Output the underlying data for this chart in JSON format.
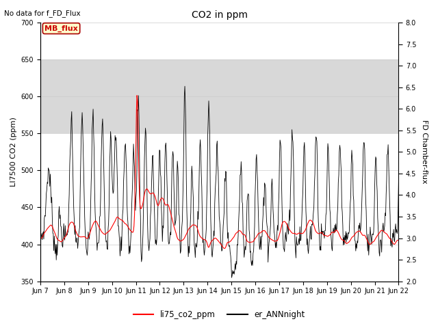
{
  "title": "CO2 in ppm",
  "ylabel_left": "LI7500 CO2 (ppm)",
  "ylabel_right": "FD Chamber-flux",
  "ylim_left": [
    350,
    700
  ],
  "ylim_right": [
    2.0,
    8.0
  ],
  "yticks_left": [
    350,
    400,
    450,
    500,
    550,
    600,
    650,
    700
  ],
  "yticks_right": [
    2.0,
    2.5,
    3.0,
    3.5,
    4.0,
    4.5,
    5.0,
    5.5,
    6.0,
    6.5,
    7.0,
    7.5,
    8.0
  ],
  "no_data_text": "No data for f_FD_Flux",
  "mb_flux_label": "MB_flux",
  "legend_labels": [
    "li75_co2_ppm",
    "er_ANNnight"
  ],
  "shaded_band": [
    550,
    650
  ],
  "shaded_color": "#d8d8d8",
  "line_red_color": "#ff0000",
  "line_black_color": "#000000",
  "mb_flux_box_color": "#ffffcc",
  "mb_flux_text_color": "#cc0000",
  "x_labels": [
    "Jun 7",
    "Jun 8",
    "Jun 9",
    "Jun 10",
    "Jun 11",
    "Jun 12",
    "Jun 13",
    "Jun 14",
    "Jun 15",
    "Jun 16",
    "Jun 17",
    "Jun 18",
    "Jun 19",
    "Jun 20",
    "Jun 21",
    "Jun 22"
  ],
  "background_color": "#ffffff",
  "title_fontsize": 10,
  "label_fontsize": 8,
  "tick_fontsize": 7
}
